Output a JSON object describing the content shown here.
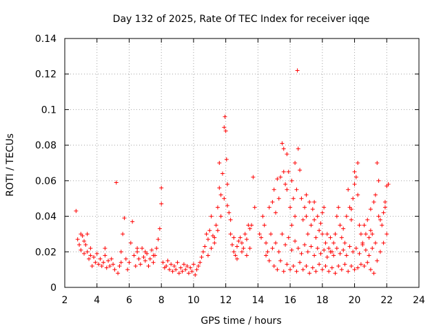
{
  "chart_data": {
    "type": "scatter",
    "title": "Day 132 of 2025, Rate Of TEC Index for receiver iqqe",
    "xlabel": "GPS time / hours",
    "ylabel": "ROTI / TECUs",
    "xlim": [
      2,
      24
    ],
    "ylim": [
      0,
      0.14
    ],
    "x_ticks": [
      "2",
      "4",
      "6",
      "8",
      "10",
      "12",
      "14",
      "16",
      "18",
      "20",
      "22",
      "24"
    ],
    "y_ticks": [
      "0",
      "0.02",
      "0.04",
      "0.06",
      "0.08",
      "0.1",
      "0.12",
      "0.14"
    ],
    "grid": true,
    "marker": "+",
    "color": "#ff0000",
    "series": [
      {
        "values": [
          [
            2.7,
            0.043
          ],
          [
            2.8,
            0.027
          ],
          [
            2.9,
            0.024
          ],
          [
            3.0,
            0.021
          ],
          [
            3.1,
            0.029
          ],
          [
            3.2,
            0.019
          ],
          [
            3.3,
            0.024
          ],
          [
            3.4,
            0.03
          ],
          [
            3.5,
            0.016
          ],
          [
            3.6,
            0.022
          ],
          [
            3.7,
            0.012
          ],
          [
            3.8,
            0.017
          ],
          [
            3.9,
            0.014
          ],
          [
            4.0,
            0.019
          ],
          [
            4.1,
            0.013
          ],
          [
            4.2,
            0.016
          ],
          [
            4.3,
            0.012
          ],
          [
            4.4,
            0.014
          ],
          [
            4.5,
            0.022
          ],
          [
            4.6,
            0.011
          ],
          [
            4.7,
            0.015
          ],
          [
            4.8,
            0.012
          ],
          [
            4.9,
            0.016
          ],
          [
            5.0,
            0.013
          ],
          [
            5.1,
            0.01
          ],
          [
            5.2,
            0.059
          ],
          [
            5.3,
            0.008
          ],
          [
            5.4,
            0.012
          ],
          [
            5.5,
            0.02
          ],
          [
            5.6,
            0.03
          ],
          [
            5.7,
            0.039
          ],
          [
            5.8,
            0.016
          ],
          [
            5.9,
            0.01
          ],
          [
            6.0,
            0.014
          ],
          [
            6.1,
            0.025
          ],
          [
            6.2,
            0.037
          ],
          [
            6.3,
            0.018
          ],
          [
            6.4,
            0.012
          ],
          [
            6.5,
            0.02
          ],
          [
            6.6,
            0.016
          ],
          [
            6.7,
            0.013
          ],
          [
            6.8,
            0.022
          ],
          [
            6.9,
            0.017
          ],
          [
            7.0,
            0.015
          ],
          [
            7.1,
            0.019
          ],
          [
            7.2,
            0.012
          ],
          [
            7.3,
            0.016
          ],
          [
            7.4,
            0.021
          ],
          [
            7.5,
            0.014
          ],
          [
            7.6,
            0.018
          ],
          [
            7.7,
            0.022
          ],
          [
            7.8,
            0.027
          ],
          [
            7.9,
            0.033
          ],
          [
            8.0,
            0.056
          ],
          [
            8.0,
            0.047
          ],
          [
            8.1,
            0.014
          ],
          [
            8.2,
            0.011
          ],
          [
            8.3,
            0.012
          ],
          [
            8.4,
            0.015
          ],
          [
            8.5,
            0.01
          ],
          [
            8.6,
            0.013
          ],
          [
            8.7,
            0.009
          ],
          [
            8.8,
            0.012
          ],
          [
            8.9,
            0.01
          ],
          [
            9.0,
            0.014
          ],
          [
            9.1,
            0.008
          ],
          [
            9.2,
            0.011
          ],
          [
            9.3,
            0.009
          ],
          [
            9.4,
            0.013
          ],
          [
            9.5,
            0.01
          ],
          [
            9.6,
            0.012
          ],
          [
            9.7,
            0.008
          ],
          [
            9.8,
            0.011
          ],
          [
            9.9,
            0.009
          ],
          [
            10.0,
            0.013
          ],
          [
            10.1,
            0.007
          ],
          [
            10.2,
            0.01
          ],
          [
            10.3,
            0.012
          ],
          [
            10.4,
            0.014
          ],
          [
            10.5,
            0.017
          ],
          [
            10.6,
            0.02
          ],
          [
            10.7,
            0.023
          ],
          [
            10.8,
            0.03
          ],
          [
            10.9,
            0.027
          ],
          [
            11.0,
            0.032
          ],
          [
            11.1,
            0.04
          ],
          [
            11.2,
            0.029
          ],
          [
            11.3,
            0.025
          ],
          [
            11.4,
            0.035
          ],
          [
            11.5,
            0.045
          ],
          [
            11.6,
            0.056
          ],
          [
            11.6,
            0.07
          ],
          [
            11.7,
            0.052
          ],
          [
            11.8,
            0.064
          ],
          [
            11.9,
            0.09
          ],
          [
            11.95,
            0.096
          ],
          [
            12.0,
            0.088
          ],
          [
            12.05,
            0.072
          ],
          [
            12.1,
            0.058
          ],
          [
            12.2,
            0.042
          ],
          [
            12.3,
            0.03
          ],
          [
            12.4,
            0.024
          ],
          [
            12.5,
            0.02
          ],
          [
            12.6,
            0.018
          ],
          [
            12.7,
            0.023
          ],
          [
            12.8,
            0.026
          ],
          [
            12.9,
            0.028
          ],
          [
            13.0,
            0.025
          ],
          [
            13.1,
            0.022
          ],
          [
            13.2,
            0.03
          ],
          [
            13.3,
            0.027
          ],
          [
            13.4,
            0.035
          ],
          [
            13.5,
            0.033
          ],
          [
            13.6,
            0.035
          ],
          [
            13.7,
            0.062
          ],
          [
            13.8,
            0.045
          ],
          [
            14.1,
            0.03
          ],
          [
            14.2,
            0.028
          ],
          [
            14.3,
            0.04
          ],
          [
            14.4,
            0.035
          ],
          [
            14.5,
            0.025
          ],
          [
            14.6,
            0.02
          ],
          [
            14.7,
            0.045
          ],
          [
            14.8,
            0.03
          ],
          [
            14.9,
            0.048
          ],
          [
            15.0,
            0.055
          ],
          [
            15.1,
            0.042
          ],
          [
            15.2,
            0.061
          ],
          [
            15.3,
            0.05
          ],
          [
            15.4,
            0.062
          ],
          [
            15.5,
            0.081
          ],
          [
            15.6,
            0.078
          ],
          [
            15.7,
            0.058
          ],
          [
            15.8,
            0.075
          ],
          [
            15.9,
            0.065
          ],
          [
            16.0,
            0.045
          ],
          [
            16.1,
            0.035
          ],
          [
            16.2,
            0.05
          ],
          [
            16.3,
            0.04
          ],
          [
            16.4,
            0.055
          ],
          [
            16.45,
            0.122
          ],
          [
            16.5,
            0.078
          ],
          [
            16.6,
            0.066
          ],
          [
            16.7,
            0.05
          ],
          [
            16.8,
            0.038
          ],
          [
            16.9,
            0.045
          ],
          [
            17.0,
            0.04
          ],
          [
            17.1,
            0.03
          ],
          [
            17.2,
            0.048
          ],
          [
            17.3,
            0.035
          ],
          [
            17.4,
            0.044
          ],
          [
            17.5,
            0.038
          ],
          [
            17.6,
            0.028
          ],
          [
            17.7,
            0.04
          ],
          [
            17.8,
            0.032
          ],
          [
            17.9,
            0.036
          ],
          [
            18.0,
            0.03
          ],
          [
            18.1,
            0.045
          ],
          [
            18.2,
            0.025
          ],
          [
            18.3,
            0.03
          ],
          [
            18.4,
            0.022
          ],
          [
            18.5,
            0.028
          ],
          [
            18.6,
            0.02
          ],
          [
            18.7,
            0.025
          ],
          [
            18.8,
            0.03
          ],
          [
            18.9,
            0.04
          ],
          [
            19.0,
            0.045
          ],
          [
            19.1,
            0.035
          ],
          [
            19.2,
            0.028
          ],
          [
            19.3,
            0.033
          ],
          [
            19.4,
            0.025
          ],
          [
            19.5,
            0.04
          ],
          [
            19.6,
            0.055
          ],
          [
            19.7,
            0.045
          ],
          [
            19.8,
            0.038
          ],
          [
            19.9,
            0.05
          ],
          [
            20.0,
            0.065
          ],
          [
            20.1,
            0.062
          ],
          [
            20.2,
            0.07
          ],
          [
            20.3,
            0.035
          ],
          [
            20.4,
            0.03
          ],
          [
            20.5,
            0.025
          ],
          [
            20.6,
            0.035
          ],
          [
            20.7,
            0.03
          ],
          [
            20.8,
            0.038
          ],
          [
            20.9,
            0.028
          ],
          [
            21.0,
            0.032
          ],
          [
            21.1,
            0.03
          ],
          [
            21.2,
            0.048
          ],
          [
            21.3,
            0.052
          ],
          [
            21.4,
            0.07
          ],
          [
            21.5,
            0.04
          ],
          [
            21.6,
            0.038
          ],
          [
            21.7,
            0.035
          ],
          [
            21.8,
            0.042
          ],
          [
            21.9,
            0.048
          ],
          [
            22.0,
            0.057
          ],
          [
            22.1,
            0.058
          ],
          [
            15.0,
            0.012
          ],
          [
            15.2,
            0.01
          ],
          [
            15.4,
            0.015
          ],
          [
            15.6,
            0.009
          ],
          [
            15.8,
            0.013
          ],
          [
            16.0,
            0.01
          ],
          [
            16.2,
            0.012
          ],
          [
            16.4,
            0.009
          ],
          [
            16.6,
            0.014
          ],
          [
            16.8,
            0.01
          ],
          [
            17.0,
            0.012
          ],
          [
            17.2,
            0.008
          ],
          [
            17.4,
            0.011
          ],
          [
            17.6,
            0.009
          ],
          [
            17.8,
            0.013
          ],
          [
            18.0,
            0.01
          ],
          [
            18.2,
            0.012
          ],
          [
            18.4,
            0.009
          ],
          [
            18.6,
            0.011
          ],
          [
            18.8,
            0.008
          ],
          [
            19.0,
            0.012
          ],
          [
            19.2,
            0.01
          ],
          [
            19.4,
            0.013
          ],
          [
            19.6,
            0.009
          ],
          [
            19.8,
            0.012
          ],
          [
            20.0,
            0.01
          ],
          [
            20.2,
            0.011
          ],
          [
            20.4,
            0.013
          ],
          [
            20.6,
            0.012
          ],
          [
            20.8,
            0.014
          ],
          [
            21.0,
            0.01
          ],
          [
            21.2,
            0.008
          ],
          [
            21.4,
            0.015
          ],
          [
            21.6,
            0.02
          ],
          [
            21.8,
            0.025
          ],
          [
            22.0,
            0.03
          ],
          [
            14.5,
            0.018
          ],
          [
            14.7,
            0.015
          ],
          [
            14.9,
            0.022
          ],
          [
            15.1,
            0.025
          ],
          [
            15.3,
            0.02
          ],
          [
            15.5,
            0.03
          ],
          [
            15.7,
            0.024
          ],
          [
            15.9,
            0.028
          ],
          [
            16.1,
            0.021
          ],
          [
            16.3,
            0.026
          ],
          [
            16.5,
            0.022
          ],
          [
            16.7,
            0.019
          ],
          [
            16.9,
            0.024
          ],
          [
            17.1,
            0.02
          ],
          [
            17.3,
            0.023
          ],
          [
            17.5,
            0.018
          ],
          [
            17.7,
            0.022
          ],
          [
            17.9,
            0.019
          ],
          [
            18.1,
            0.021
          ],
          [
            18.3,
            0.017
          ],
          [
            18.5,
            0.02
          ],
          [
            18.7,
            0.018
          ],
          [
            18.9,
            0.022
          ],
          [
            19.1,
            0.019
          ],
          [
            19.3,
            0.021
          ],
          [
            19.5,
            0.018
          ],
          [
            19.7,
            0.023
          ],
          [
            19.9,
            0.02
          ],
          [
            20.1,
            0.022
          ],
          [
            20.3,
            0.019
          ],
          [
            20.5,
            0.024
          ],
          [
            20.7,
            0.021
          ],
          [
            20.9,
            0.018
          ],
          [
            21.1,
            0.022
          ],
          [
            21.3,
            0.025
          ],
          [
            3.0,
            0.03
          ],
          [
            3.2,
            0.026
          ],
          [
            3.4,
            0.02
          ],
          [
            3.6,
            0.018
          ],
          [
            4.5,
            0.018
          ],
          [
            5.5,
            0.014
          ],
          [
            6.5,
            0.022
          ],
          [
            7.0,
            0.02
          ],
          [
            7.5,
            0.018
          ],
          [
            10.9,
            0.018
          ],
          [
            11.1,
            0.022
          ],
          [
            11.3,
            0.028
          ],
          [
            11.5,
            0.032
          ],
          [
            11.7,
            0.04
          ],
          [
            11.9,
            0.05
          ],
          [
            12.1,
            0.046
          ],
          [
            12.3,
            0.038
          ],
          [
            12.5,
            0.028
          ],
          [
            12.7,
            0.016
          ],
          [
            13.0,
            0.02
          ],
          [
            13.3,
            0.018
          ],
          [
            13.5,
            0.022
          ],
          [
            15.6,
            0.065
          ],
          [
            15.8,
            0.055
          ],
          [
            16.1,
            0.06
          ],
          [
            16.3,
            0.07
          ],
          [
            17.0,
            0.052
          ],
          [
            17.5,
            0.048
          ],
          [
            18.0,
            0.042
          ],
          [
            19.8,
            0.044
          ],
          [
            20.0,
            0.058
          ],
          [
            20.2,
            0.052
          ],
          [
            21.0,
            0.044
          ],
          [
            21.5,
            0.06
          ],
          [
            21.9,
            0.045
          ]
        ]
      }
    ]
  }
}
